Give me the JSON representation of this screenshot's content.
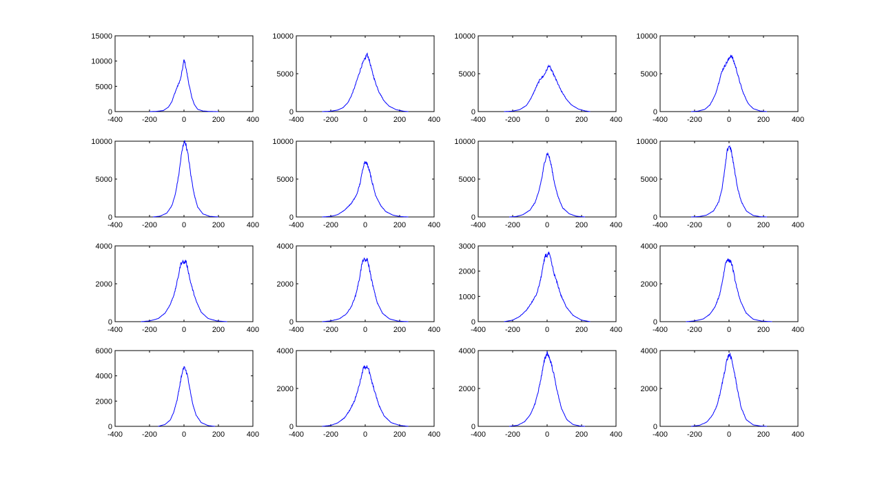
{
  "figure": {
    "layout": {
      "rows": 4,
      "cols": 4
    },
    "line_color": "#0000ff",
    "axis_color": "#000000"
  },
  "chart_data": [
    {
      "type": "line",
      "title": "",
      "xlabel": "",
      "ylabel": "",
      "xlim": [
        -400,
        400
      ],
      "ylim": [
        0,
        15000
      ],
      "xticks": [
        -400,
        -200,
        0,
        200,
        400
      ],
      "yticks": [
        0,
        5000,
        10000,
        15000
      ],
      "grid": false,
      "legend": "none",
      "series": [
        {
          "color": "#0000ff",
          "x": [
            -200,
            -160,
            -120,
            -90,
            -70,
            -55,
            -40,
            -30,
            -20,
            -10,
            0,
            5,
            15,
            30,
            45,
            60,
            80,
            110,
            150,
            200
          ],
          "y": [
            0,
            50,
            200,
            900,
            2000,
            3500,
            4800,
            5600,
            6400,
            8200,
            10200,
            9800,
            8000,
            5200,
            2900,
            1400,
            450,
            120,
            30,
            0
          ]
        }
      ]
    },
    {
      "type": "line",
      "title": "",
      "xlabel": "",
      "ylabel": "",
      "xlim": [
        -400,
        400
      ],
      "ylim": [
        0,
        10000
      ],
      "xticks": [
        -400,
        -200,
        0,
        200,
        400
      ],
      "yticks": [
        0,
        5000,
        10000
      ],
      "grid": false,
      "legend": "none",
      "series": [
        {
          "color": "#0000ff",
          "x": [
            -250,
            -200,
            -160,
            -130,
            -100,
            -80,
            -60,
            -40,
            -20,
            0,
            10,
            20,
            40,
            60,
            80,
            110,
            140,
            180,
            220,
            250
          ],
          "y": [
            0,
            50,
            200,
            500,
            1200,
            2100,
            3300,
            4700,
            6100,
            7000,
            7600,
            7100,
            5300,
            3800,
            2600,
            1400,
            700,
            250,
            60,
            0
          ]
        }
      ]
    },
    {
      "type": "line",
      "title": "",
      "xlabel": "",
      "ylabel": "",
      "xlim": [
        -400,
        400
      ],
      "ylim": [
        0,
        10000
      ],
      "xticks": [
        -400,
        -200,
        0,
        200,
        400
      ],
      "yticks": [
        0,
        5000,
        10000
      ],
      "grid": false,
      "legend": "none",
      "series": [
        {
          "color": "#0000ff",
          "x": [
            -250,
            -200,
            -160,
            -120,
            -90,
            -60,
            -40,
            -20,
            0,
            10,
            20,
            40,
            60,
            80,
            110,
            140,
            180,
            220,
            250
          ],
          "y": [
            0,
            60,
            250,
            800,
            1900,
            3400,
            4300,
            4700,
            5600,
            6100,
            5700,
            4800,
            3800,
            2800,
            1700,
            900,
            350,
            90,
            0
          ]
        }
      ]
    },
    {
      "type": "line",
      "title": "",
      "xlabel": "",
      "ylabel": "",
      "xlim": [
        -400,
        400
      ],
      "ylim": [
        0,
        10000
      ],
      "xticks": [
        -400,
        -200,
        0,
        200,
        400
      ],
      "yticks": [
        0,
        5000,
        10000
      ],
      "grid": false,
      "legend": "none",
      "series": [
        {
          "color": "#0000ff",
          "x": [
            -220,
            -180,
            -140,
            -110,
            -80,
            -60,
            -40,
            -20,
            0,
            10,
            20,
            40,
            60,
            80,
            110,
            140,
            180,
            220
          ],
          "y": [
            0,
            60,
            300,
            900,
            2200,
            3800,
            5400,
            6200,
            7000,
            7400,
            7100,
            5800,
            4100,
            2600,
            1100,
            400,
            80,
            0
          ]
        }
      ]
    },
    {
      "type": "line",
      "title": "",
      "xlabel": "",
      "ylabel": "",
      "xlim": [
        -400,
        400
      ],
      "ylim": [
        0,
        10000
      ],
      "xticks": [
        -400,
        -200,
        0,
        200,
        400
      ],
      "yticks": [
        0,
        5000,
        10000
      ],
      "grid": false,
      "legend": "none",
      "series": [
        {
          "color": "#0000ff",
          "x": [
            -180,
            -140,
            -100,
            -70,
            -50,
            -30,
            -15,
            0,
            10,
            25,
            40,
            60,
            80,
            110,
            150,
            200
          ],
          "y": [
            0,
            100,
            500,
            1500,
            3000,
            5600,
            8200,
            10000,
            9700,
            8000,
            5500,
            2900,
            1300,
            400,
            80,
            0
          ]
        }
      ]
    },
    {
      "type": "line",
      "title": "",
      "xlabel": "",
      "ylabel": "",
      "xlim": [
        -400,
        400
      ],
      "ylim": [
        0,
        10000
      ],
      "xticks": [
        -400,
        -200,
        0,
        200,
        400
      ],
      "yticks": [
        0,
        5000,
        10000
      ],
      "grid": false,
      "legend": "none",
      "series": [
        {
          "color": "#0000ff",
          "x": [
            -250,
            -200,
            -160,
            -120,
            -80,
            -50,
            -30,
            -10,
            0,
            10,
            25,
            40,
            60,
            90,
            120,
            160,
            200,
            250
          ],
          "y": [
            0,
            80,
            300,
            900,
            1800,
            2900,
            4400,
            6800,
            7400,
            7000,
            6200,
            4600,
            2900,
            1500,
            700,
            250,
            60,
            0
          ]
        }
      ]
    },
    {
      "type": "line",
      "title": "",
      "xlabel": "",
      "ylabel": "",
      "xlim": [
        -400,
        400
      ],
      "ylim": [
        0,
        10000
      ],
      "xticks": [
        -400,
        -200,
        0,
        200,
        400
      ],
      "yticks": [
        0,
        5000,
        10000
      ],
      "grid": false,
      "legend": "none",
      "series": [
        {
          "color": "#0000ff",
          "x": [
            -220,
            -180,
            -140,
            -100,
            -70,
            -50,
            -30,
            -15,
            0,
            10,
            25,
            40,
            60,
            90,
            130,
            170,
            220
          ],
          "y": [
            0,
            60,
            300,
            900,
            1900,
            3200,
            5200,
            7200,
            8400,
            8100,
            6700,
            4800,
            2900,
            1200,
            400,
            100,
            0
          ]
        }
      ]
    },
    {
      "type": "line",
      "title": "",
      "xlabel": "",
      "ylabel": "",
      "xlim": [
        -400,
        400
      ],
      "ylim": [
        0,
        10000
      ],
      "xticks": [
        -400,
        -200,
        0,
        200,
        400
      ],
      "yticks": [
        0,
        5000,
        10000
      ],
      "grid": false,
      "legend": "none",
      "series": [
        {
          "color": "#0000ff",
          "x": [
            -220,
            -170,
            -130,
            -90,
            -60,
            -40,
            -25,
            -10,
            0,
            10,
            20,
            35,
            50,
            70,
            100,
            140,
            180,
            220
          ],
          "y": [
            0,
            60,
            250,
            800,
            2000,
            3800,
            6200,
            8800,
            9400,
            9000,
            7800,
            5800,
            3800,
            2100,
            800,
            200,
            40,
            0
          ]
        }
      ]
    },
    {
      "type": "line",
      "title": "",
      "xlabel": "",
      "ylabel": "",
      "xlim": [
        -400,
        400
      ],
      "ylim": [
        0,
        4000
      ],
      "xticks": [
        -400,
        -200,
        0,
        200,
        400
      ],
      "yticks": [
        0,
        2000,
        4000
      ],
      "grid": false,
      "legend": "none",
      "series": [
        {
          "color": "#0000ff",
          "x": [
            -250,
            -200,
            -150,
            -110,
            -80,
            -55,
            -35,
            -20,
            -10,
            0,
            10,
            20,
            35,
            50,
            70,
            100,
            140,
            190,
            250
          ],
          "y": [
            0,
            40,
            160,
            450,
            900,
            1500,
            2300,
            3000,
            3200,
            3100,
            3200,
            2900,
            2200,
            1700,
            1100,
            500,
            170,
            40,
            0
          ]
        }
      ]
    },
    {
      "type": "line",
      "title": "",
      "xlabel": "",
      "ylabel": "",
      "xlim": [
        -400,
        400
      ],
      "ylim": [
        0,
        4000
      ],
      "xticks": [
        -400,
        -200,
        0,
        200,
        400
      ],
      "yticks": [
        0,
        2000,
        4000
      ],
      "grid": false,
      "legend": "none",
      "series": [
        {
          "color": "#0000ff",
          "x": [
            -250,
            -200,
            -150,
            -110,
            -80,
            -55,
            -35,
            -20,
            -10,
            0,
            10,
            20,
            35,
            50,
            70,
            100,
            140,
            190,
            250
          ],
          "y": [
            0,
            40,
            150,
            400,
            800,
            1400,
            2200,
            3000,
            3300,
            3200,
            3300,
            3000,
            2300,
            1700,
            1000,
            450,
            150,
            30,
            0
          ]
        }
      ]
    },
    {
      "type": "line",
      "title": "",
      "xlabel": "",
      "ylabel": "",
      "xlim": [
        -400,
        400
      ],
      "ylim": [
        0,
        3000
      ],
      "xticks": [
        -400,
        -200,
        0,
        200,
        400
      ],
      "yticks": [
        0,
        1000,
        2000,
        3000
      ],
      "grid": false,
      "legend": "none",
      "series": [
        {
          "color": "#0000ff",
          "x": [
            -250,
            -200,
            -160,
            -120,
            -90,
            -60,
            -40,
            -20,
            -10,
            0,
            10,
            20,
            40,
            60,
            80,
            110,
            150,
            200,
            250
          ],
          "y": [
            0,
            60,
            200,
            450,
            750,
            1100,
            1600,
            2300,
            2650,
            2600,
            2700,
            2500,
            1900,
            1500,
            1050,
            600,
            250,
            60,
            0
          ]
        }
      ]
    },
    {
      "type": "line",
      "title": "",
      "xlabel": "",
      "ylabel": "",
      "xlim": [
        -400,
        400
      ],
      "ylim": [
        0,
        4000
      ],
      "xticks": [
        -400,
        -200,
        0,
        200,
        400
      ],
      "yticks": [
        0,
        2000,
        4000
      ],
      "grid": false,
      "legend": "none",
      "series": [
        {
          "color": "#0000ff",
          "x": [
            -250,
            -200,
            -150,
            -110,
            -80,
            -55,
            -35,
            -20,
            -10,
            0,
            10,
            20,
            35,
            50,
            70,
            100,
            140,
            190,
            250
          ],
          "y": [
            0,
            40,
            140,
            400,
            800,
            1400,
            2300,
            3100,
            3300,
            3200,
            3200,
            2900,
            2200,
            1600,
            1000,
            450,
            130,
            30,
            0
          ]
        }
      ]
    },
    {
      "type": "line",
      "title": "",
      "xlabel": "",
      "ylabel": "",
      "xlim": [
        -400,
        400
      ],
      "ylim": [
        0,
        6000
      ],
      "xticks": [
        -400,
        -200,
        0,
        200,
        400
      ],
      "yticks": [
        0,
        2000,
        4000,
        6000
      ],
      "grid": false,
      "legend": "none",
      "series": [
        {
          "color": "#0000ff",
          "x": [
            -150,
            -110,
            -80,
            -60,
            -40,
            -25,
            -10,
            0,
            10,
            20,
            35,
            50,
            70,
            100,
            140,
            180
          ],
          "y": [
            0,
            150,
            500,
            1100,
            2100,
            3200,
            4300,
            4700,
            4400,
            4000,
            2900,
            1800,
            900,
            300,
            60,
            0
          ]
        }
      ]
    },
    {
      "type": "line",
      "title": "",
      "xlabel": "",
      "ylabel": "",
      "xlim": [
        -400,
        400
      ],
      "ylim": [
        0,
        4000
      ],
      "xticks": [
        -400,
        -200,
        0,
        200,
        400
      ],
      "yticks": [
        0,
        2000,
        4000
      ],
      "grid": false,
      "legend": "none",
      "series": [
        {
          "color": "#0000ff",
          "x": [
            -250,
            -200,
            -160,
            -120,
            -90,
            -60,
            -40,
            -20,
            -10,
            0,
            10,
            20,
            40,
            60,
            80,
            110,
            150,
            200,
            250
          ],
          "y": [
            0,
            50,
            180,
            450,
            850,
            1400,
            2000,
            2700,
            3100,
            3100,
            3200,
            3000,
            2300,
            1700,
            1100,
            550,
            200,
            50,
            0
          ]
        }
      ]
    },
    {
      "type": "line",
      "title": "",
      "xlabel": "",
      "ylabel": "",
      "xlim": [
        -400,
        400
      ],
      "ylim": [
        0,
        4000
      ],
      "xticks": [
        -400,
        -200,
        0,
        200,
        400
      ],
      "yticks": [
        0,
        2000,
        4000
      ],
      "grid": false,
      "legend": "none",
      "series": [
        {
          "color": "#0000ff",
          "x": [
            -220,
            -170,
            -130,
            -95,
            -70,
            -50,
            -30,
            -15,
            0,
            10,
            25,
            40,
            60,
            85,
            115,
            150,
            190,
            220
          ],
          "y": [
            0,
            60,
            250,
            650,
            1200,
            1900,
            2800,
            3500,
            3900,
            3700,
            3300,
            2700,
            1800,
            900,
            350,
            100,
            20,
            0
          ]
        }
      ]
    },
    {
      "type": "line",
      "title": "",
      "xlabel": "",
      "ylabel": "",
      "xlim": [
        -400,
        400
      ],
      "ylim": [
        0,
        4000
      ],
      "xticks": [
        -400,
        -200,
        0,
        200,
        400
      ],
      "yticks": [
        0,
        2000,
        4000
      ],
      "grid": false,
      "legend": "none",
      "series": [
        {
          "color": "#0000ff",
          "x": [
            -220,
            -170,
            -130,
            -95,
            -70,
            -50,
            -30,
            -15,
            -5,
            5,
            15,
            30,
            50,
            70,
            100,
            140,
            180,
            220
          ],
          "y": [
            0,
            60,
            220,
            600,
            1100,
            1800,
            2700,
            3400,
            3700,
            3800,
            3500,
            2900,
            1900,
            1000,
            350,
            80,
            20,
            0
          ]
        }
      ]
    }
  ]
}
